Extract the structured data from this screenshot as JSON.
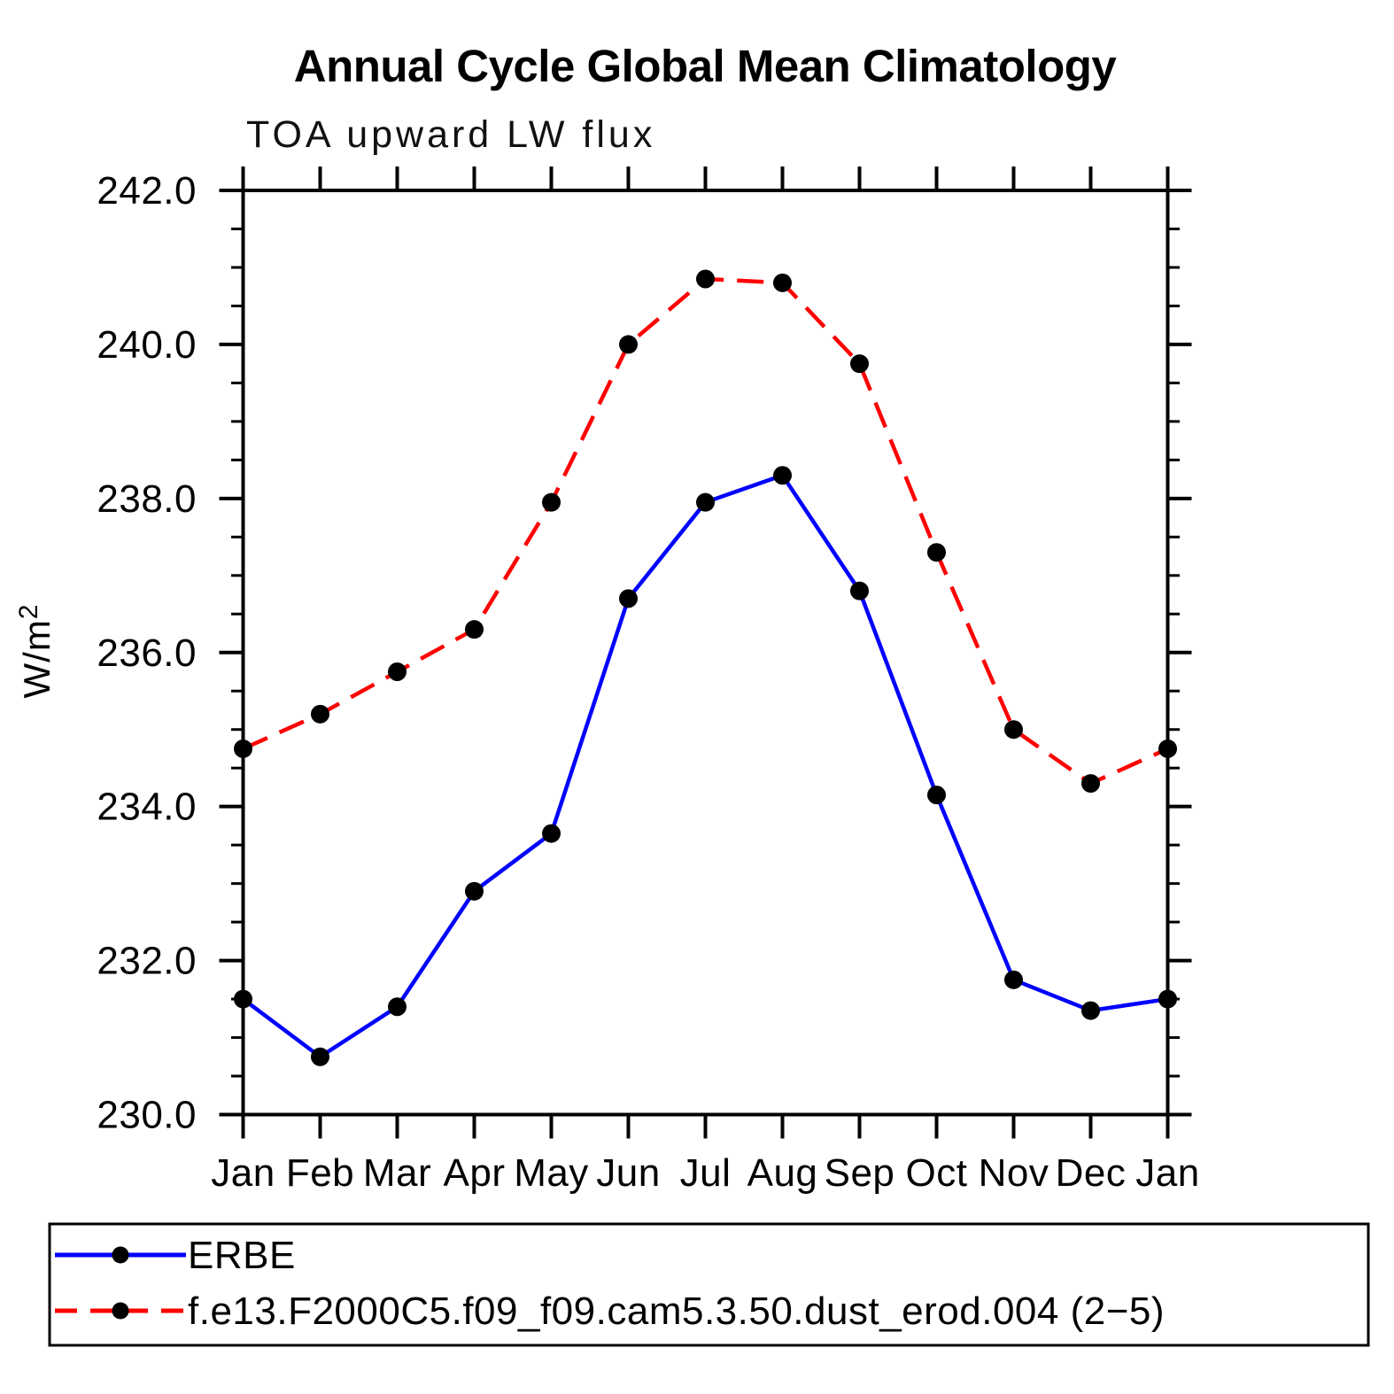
{
  "page": {
    "background": "#ffffff"
  },
  "chart_data": {
    "type": "line",
    "title": "Annual Cycle Global Mean Climatology",
    "subtitle": "TOA upward LW flux",
    "xlabel": "",
    "ylabel": "W/m²",
    "ylabel_base": "W/m",
    "ylabel_exp": "2",
    "categories": [
      "Jan",
      "Feb",
      "Mar",
      "Apr",
      "May",
      "Jun",
      "Jul",
      "Aug",
      "Sep",
      "Oct",
      "Nov",
      "Dec",
      "Jan"
    ],
    "ylim": [
      230.0,
      242.0
    ],
    "ytick_major_step": 2.0,
    "ytick_minor_step": 0.5,
    "ytick_labels": [
      "242.0",
      "240.0",
      "238.0",
      "236.0",
      "234.0",
      "232.0",
      "230.0"
    ],
    "grid": false,
    "legend_position": "bottom",
    "axis_color": "#000000",
    "marker_color": "#000000",
    "series": [
      {
        "name": "ERBE",
        "color": "#0000ff",
        "style": "solid",
        "marker": "circle",
        "values": [
          231.5,
          230.75,
          231.4,
          232.9,
          233.65,
          236.7,
          237.95,
          238.3,
          236.8,
          234.15,
          231.75,
          231.35,
          231.5
        ]
      },
      {
        "name": "f.e13.F2000C5.f09_f09.cam5.3.50.dust_erod.004 (2−5)",
        "color": "#ff0000",
        "style": "dashed",
        "marker": "circle",
        "values": [
          234.75,
          235.2,
          235.75,
          236.3,
          237.95,
          240.0,
          240.85,
          240.8,
          239.75,
          237.3,
          235.0,
          234.3,
          234.75
        ]
      }
    ]
  }
}
